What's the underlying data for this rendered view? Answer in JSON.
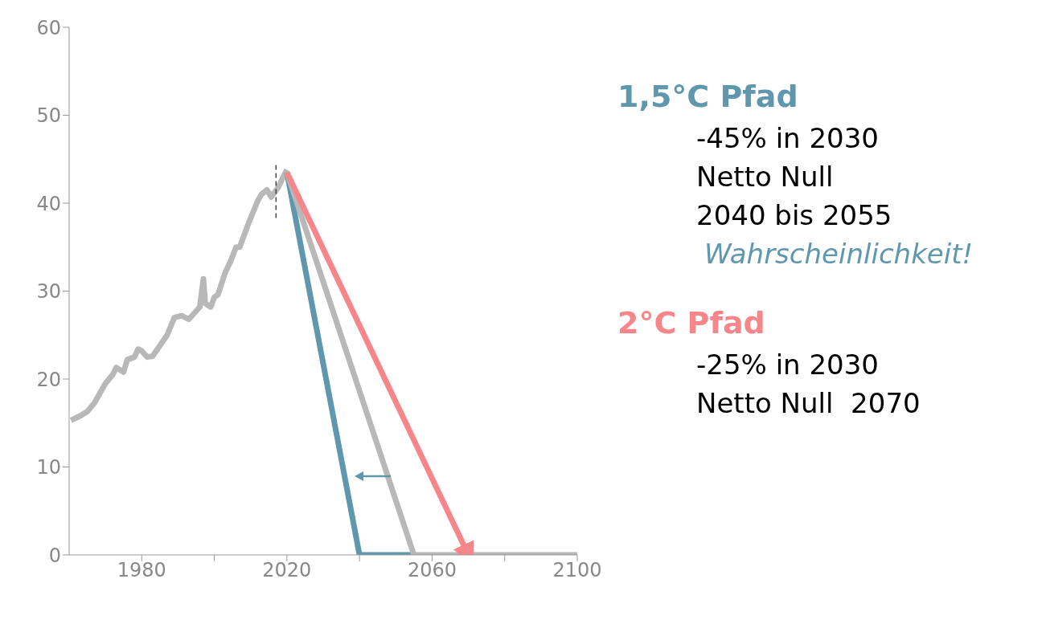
{
  "chart_data": {
    "type": "line",
    "xlim": [
      1960,
      2100
    ],
    "xticks": [
      1980,
      {
        "value": 2000,
        "label": null
      },
      2020,
      {
        "value": 2040,
        "label": null
      },
      2060,
      {
        "value": 2080,
        "label": null
      },
      2100
    ],
    "ylim": [
      0,
      60
    ],
    "yticks": [
      0,
      10,
      20,
      30,
      40,
      50,
      60
    ],
    "legend": "right",
    "marker": "none",
    "line_style": "solid",
    "series": [
      {
        "color": "#b8b8b8",
        "x": [
          1960.5,
          1963,
          1965,
          1967,
          1970,
          1972,
          1973,
          1975,
          1976,
          1978,
          1979,
          1980,
          1981.5,
          1983,
          1987,
          1989,
          1991,
          1993,
          1996,
          1997,
          1997.5,
          1999,
          2000,
          2001,
          2003,
          2004.5,
          2006,
          2007,
          2009.5,
          2012,
          2013,
          2014.5,
          2015.7,
          2017.6,
          2020
        ],
        "values": [
          15.3,
          15.8,
          16.3,
          17.3,
          19.5,
          20.5,
          21.3,
          20.8,
          22.2,
          22.5,
          23.4,
          23.2,
          22.5,
          22.6,
          25.0,
          27.0,
          27.2,
          26.8,
          28.2,
          31.4,
          28.6,
          28.2,
          29.3,
          29.6,
          32.1,
          33.4,
          35.0,
          35.0,
          37.8,
          40.3,
          41.0,
          41.5,
          40.7,
          41.8,
          43.8
        ]
      },
      {
        "name": "1,5°C Pfad",
        "color": "#5f98ae",
        "x": [
          2020,
          2040,
          2055
        ],
        "values": [
          43.5,
          0,
          0
        ]
      },
      {
        "color": "#b8b8b8",
        "x": [
          2020,
          2055,
          2100
        ],
        "values": [
          43.5,
          0,
          0
        ]
      },
      {
        "name": "2°C Pfad",
        "color": "#f7868a",
        "x": [
          2020,
          2070
        ],
        "values": [
          43.5,
          0
        ]
      },
      {
        "color": "#444444",
        "line_style": "dashed",
        "x": [
          2017,
          2017
        ],
        "values": [
          38.3,
          44.7
        ]
      }
    ],
    "annotations": [
      "-45% in 2030",
      "Netto Null",
      "2040 bis 2055",
      "Wahrscheinlichkeit!",
      "-25% in 2030",
      "Netto Null  2070"
    ]
  }
}
